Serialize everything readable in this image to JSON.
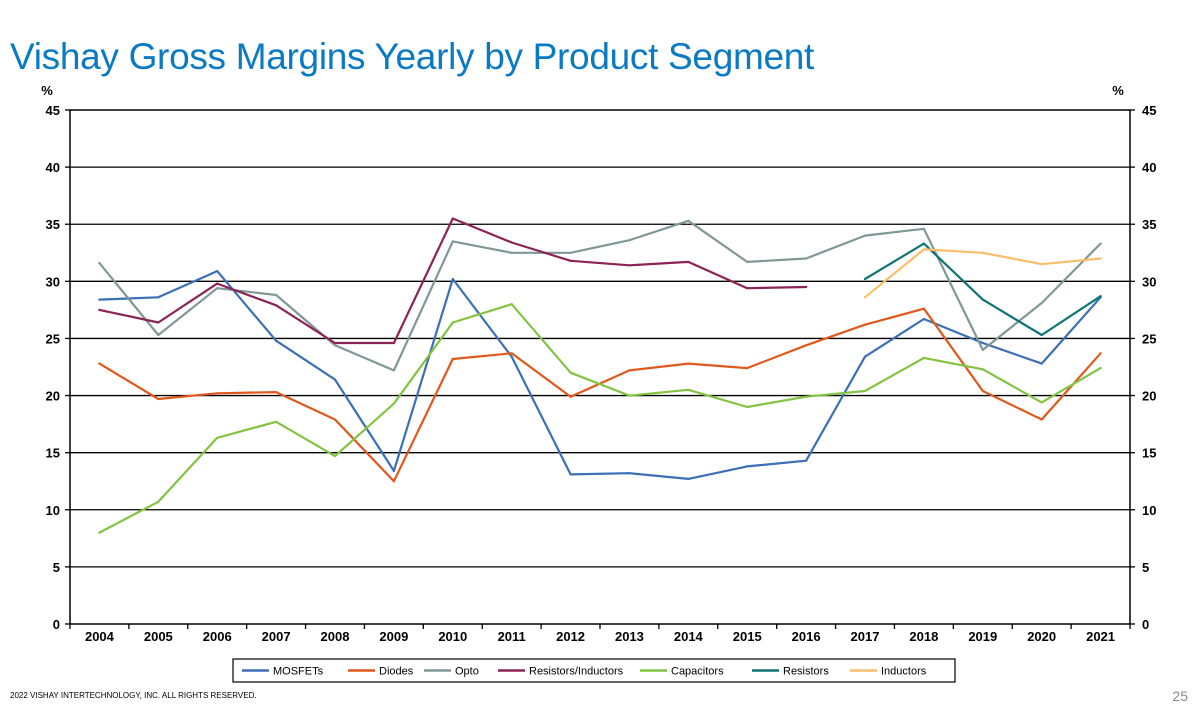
{
  "page": {
    "title": "Vishay Gross Margins Yearly by Product Segment",
    "footer": "2022 VISHAY INTERTECHNOLOGY, INC. ALL RIGHTS RESERVED.",
    "page_number": "25"
  },
  "chart_data": {
    "type": "line",
    "title": "",
    "xlabel": "",
    "ylabel": "%",
    "ylabel_right": "%",
    "ylim": [
      0,
      45
    ],
    "yticks": [
      0,
      5,
      10,
      15,
      20,
      25,
      30,
      35,
      40,
      45
    ],
    "grid": "horizontal",
    "legend_position": "bottom",
    "categories": [
      "2004",
      "2005",
      "2006",
      "2007",
      "2008",
      "2009",
      "2010",
      "2011",
      "2012",
      "2013",
      "2014",
      "2015",
      "2016",
      "2017",
      "2018",
      "2019",
      "2020",
      "2021"
    ],
    "series": [
      {
        "name": "MOSFETs",
        "color": "#3b6fb6",
        "values": [
          28.4,
          28.6,
          30.9,
          24.8,
          21.4,
          13.4,
          30.2,
          23.4,
          13.1,
          13.2,
          12.7,
          13.8,
          14.3,
          23.4,
          26.7,
          24.6,
          22.8,
          28.6
        ]
      },
      {
        "name": "Diodes",
        "color": "#e0581b",
        "values": [
          22.8,
          19.7,
          20.2,
          20.3,
          17.9,
          12.5,
          23.2,
          23.7,
          19.9,
          22.2,
          22.8,
          22.4,
          24.4,
          26.2,
          27.6,
          20.4,
          17.9,
          23.7
        ]
      },
      {
        "name": "Opto",
        "color": "#7f9797",
        "values": [
          31.6,
          25.3,
          29.4,
          28.8,
          24.4,
          22.2,
          33.5,
          32.5,
          32.5,
          33.6,
          35.3,
          31.7,
          32.0,
          34.0,
          34.6,
          24.0,
          28.1,
          33.3
        ]
      },
      {
        "name": "Resistors/Inductors",
        "color": "#8c2356",
        "values": [
          27.5,
          26.4,
          29.8,
          27.9,
          24.6,
          24.6,
          35.5,
          33.4,
          31.8,
          31.4,
          31.7,
          29.4,
          29.5,
          null,
          null,
          null,
          null,
          null
        ]
      },
      {
        "name": "Capacitors",
        "color": "#82c341",
        "values": [
          8.0,
          10.7,
          16.3,
          17.7,
          14.7,
          19.3,
          26.4,
          28.0,
          22.0,
          20.0,
          20.5,
          19.0,
          19.9,
          20.4,
          23.3,
          22.3,
          19.4,
          22.4
        ]
      },
      {
        "name": "Resistors",
        "color": "#0e7474",
        "values": [
          null,
          null,
          null,
          null,
          null,
          null,
          null,
          null,
          null,
          null,
          null,
          null,
          null,
          30.2,
          33.3,
          28.4,
          25.3,
          28.7
        ]
      },
      {
        "name": "Inductors",
        "color": "#f9be69",
        "values": [
          null,
          null,
          null,
          null,
          null,
          null,
          null,
          null,
          null,
          null,
          null,
          null,
          null,
          28.6,
          32.8,
          32.5,
          31.5,
          32.0
        ]
      }
    ]
  }
}
